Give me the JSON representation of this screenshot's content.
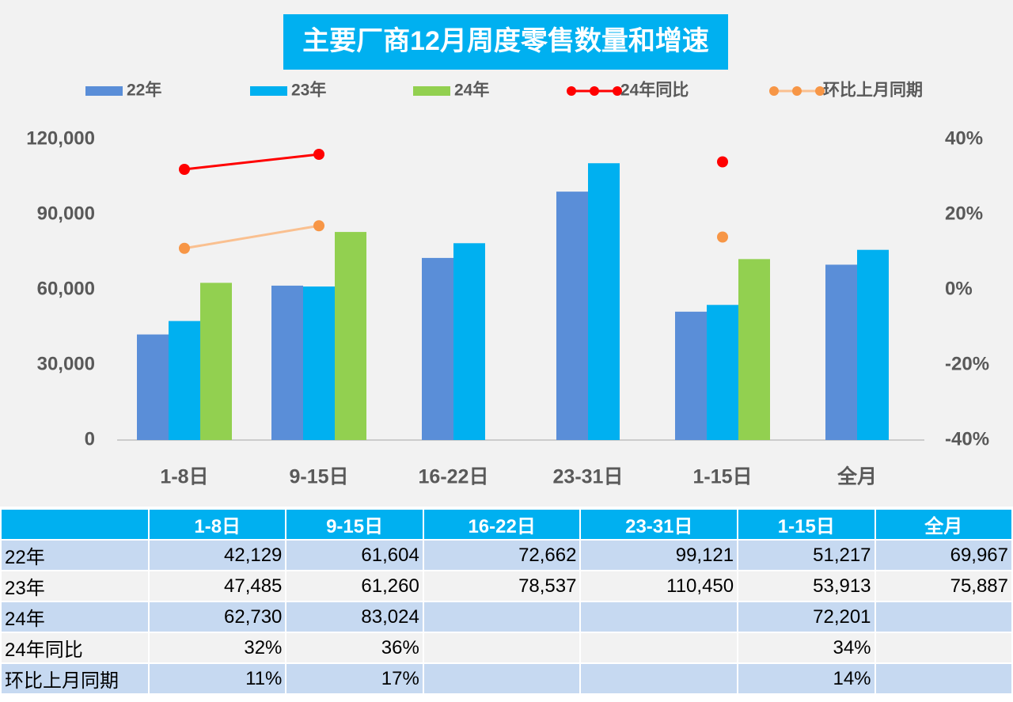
{
  "chart_data": {
    "type": "bar",
    "title": "主要厂商12月周度零售数量和增速",
    "categories": [
      "1-8日",
      "9-15日",
      "16-22日",
      "23-31日",
      "1-15日",
      "全月"
    ],
    "series": [
      {
        "name": "22年",
        "color": "#5a8ed8",
        "values": [
          42129,
          61604,
          72662,
          99121,
          51217,
          69967
        ],
        "value_labels": [
          "42,129",
          "61,604",
          "72,662",
          "99,121",
          "51,217",
          "69,967"
        ]
      },
      {
        "name": "23年",
        "color": "#00b0f0",
        "values": [
          47485,
          61260,
          78537,
          110450,
          53913,
          75887
        ],
        "value_labels": [
          "47,485",
          "61,260",
          "78,537",
          "110,450",
          "53,913",
          "75,887"
        ]
      },
      {
        "name": "24年",
        "color": "#92d050",
        "values": [
          62730,
          83024,
          null,
          null,
          72201,
          null
        ],
        "value_labels": [
          "62,730",
          "83,024",
          null,
          null,
          "72,201",
          null
        ]
      },
      {
        "name": "24年同比",
        "type": "line",
        "axis": "y2",
        "color": "#ff0000",
        "marker_color": "#ff0000",
        "values": [
          32,
          36,
          null,
          null,
          34,
          null
        ],
        "value_labels": [
          "32%",
          "36%",
          null,
          null,
          "34%",
          null
        ]
      },
      {
        "name": "环比上月同期",
        "type": "line",
        "axis": "y2",
        "color": "#fac090",
        "marker_color": "#f79646",
        "values": [
          11,
          17,
          null,
          null,
          14,
          null
        ],
        "value_labels": [
          "11%",
          "17%",
          null,
          null,
          "14%",
          null
        ]
      }
    ],
    "ylim": [
      0,
      120000
    ],
    "yticks": [
      0,
      {
        "value": 30000,
        "label": "30,000"
      },
      {
        "value": 60000,
        "label": "60,000"
      },
      {
        "value": 90000,
        "label": "90,000"
      },
      {
        "value": 120000,
        "label": "120,000"
      }
    ],
    "y2lim": [
      -40,
      40
    ],
    "y2ticks": [
      {
        "value": -40,
        "label": "-40%"
      },
      {
        "value": -20,
        "label": "-20%"
      },
      {
        "value": 0,
        "label": "0%"
      },
      {
        "value": 20,
        "label": "20%"
      },
      {
        "value": 40,
        "label": "40%"
      }
    ],
    "legend": "top",
    "grid": false
  }
}
